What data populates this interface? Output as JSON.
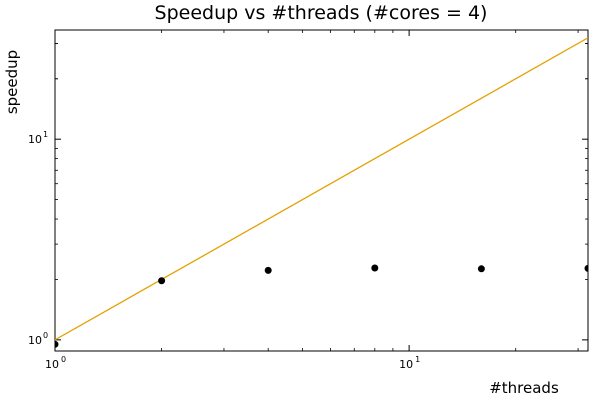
{
  "chart_data": {
    "type": "scatter",
    "title": "Speedup vs #threads (#cores = 4)",
    "xlabel": "#threads",
    "ylabel": "speedup",
    "xscale": "log",
    "yscale": "log",
    "xlim": [
      1,
      32
    ],
    "ylim": [
      0.88,
      35
    ],
    "grid": false,
    "legend": "none",
    "x_ticks": [
      {
        "value": 1,
        "base": "10",
        "exp": "0"
      },
      {
        "value": 10,
        "base": "10",
        "exp": "1"
      }
    ],
    "y_ticks": [
      {
        "value": 1,
        "base": "10",
        "exp": "0"
      },
      {
        "value": 10,
        "base": "10",
        "exp": "1"
      }
    ],
    "series": [
      {
        "type": "scatter",
        "color": "#000000",
        "points": [
          {
            "x": 1,
            "y": 0.95
          },
          {
            "x": 2,
            "y": 1.97
          },
          {
            "x": 4,
            "y": 2.22
          },
          {
            "x": 8,
            "y": 2.28
          },
          {
            "x": 16,
            "y": 2.26
          },
          {
            "x": 32,
            "y": 2.27
          }
        ]
      },
      {
        "type": "line",
        "color": "#e4a100",
        "points": [
          {
            "x": 1,
            "y": 1
          },
          {
            "x": 32,
            "y": 32
          }
        ]
      }
    ]
  }
}
